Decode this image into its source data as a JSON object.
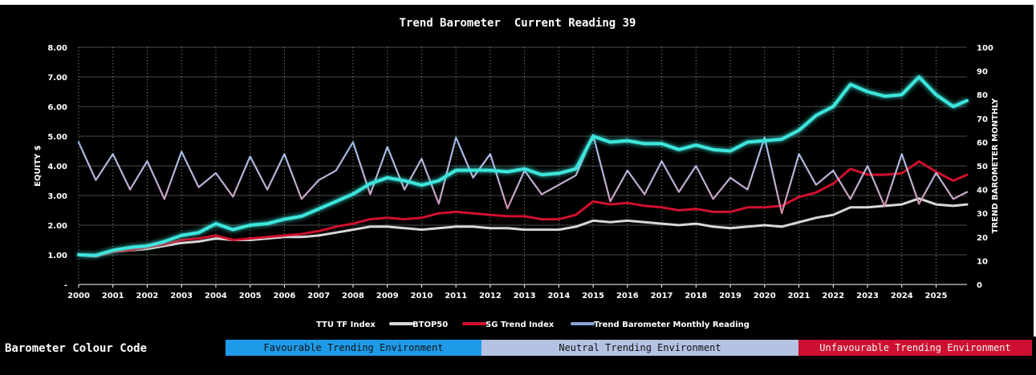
{
  "header": {
    "title": "Trend Barometer  Current Reading 39"
  },
  "chart_data": {
    "type": "line",
    "title": "Trend Barometer  Current Reading 39",
    "ylabel_left": "EQUITY $",
    "ylabel_right": "TREND BAROMETER MONTHLY",
    "xlim": [
      2000,
      2025.9
    ],
    "ylim_left": [
      0,
      8
    ],
    "ylim_right": [
      0,
      100
    ],
    "x_ticks": [
      "2000",
      "2001",
      "2002",
      "2003",
      "2004",
      "2005",
      "2006",
      "2007",
      "2008",
      "2009",
      "2010",
      "2011",
      "2012",
      "2013",
      "2014",
      "2015",
      "2016",
      "2017",
      "2018",
      "2019",
      "2020",
      "2021",
      "2022",
      "2023",
      "2024",
      "2025"
    ],
    "y_left_ticks": [
      "-",
      "1.00",
      "2.00",
      "3.00",
      "4.00",
      "5.00",
      "6.00",
      "7.00",
      "8.00"
    ],
    "y_right_ticks": [
      "0",
      "10",
      "20",
      "30",
      "40",
      "50",
      "60",
      "70",
      "80",
      "90",
      "100"
    ],
    "grid": true,
    "legend_position": "bottom",
    "x": [
      2000,
      2000.5,
      2001,
      2001.5,
      2002,
      2002.5,
      2003,
      2003.5,
      2004,
      2004.5,
      2005,
      2005.5,
      2006,
      2006.5,
      2007,
      2007.5,
      2008,
      2008.5,
      2009,
      2009.5,
      2010,
      2010.5,
      2011,
      2011.5,
      2012,
      2012.5,
      2013,
      2013.5,
      2014,
      2014.5,
      2015,
      2015.5,
      2016,
      2016.5,
      2017,
      2017.5,
      2018,
      2018.5,
      2019,
      2019.5,
      2020,
      2020.5,
      2021,
      2021.5,
      2022,
      2022.5,
      2023,
      2023.5,
      2024,
      2024.5,
      2025,
      2025.5,
      2025.9
    ],
    "series": [
      {
        "name": "TTU TF Index",
        "axis": "left",
        "color": "#3ee6dc",
        "values": [
          1.0,
          0.98,
          1.15,
          1.25,
          1.3,
          1.45,
          1.65,
          1.75,
          2.05,
          1.85,
          2.0,
          2.05,
          2.2,
          2.3,
          2.55,
          2.8,
          3.05,
          3.4,
          3.6,
          3.5,
          3.35,
          3.5,
          3.85,
          3.85,
          3.85,
          3.8,
          3.9,
          3.7,
          3.75,
          3.9,
          5.0,
          4.8,
          4.85,
          4.75,
          4.75,
          4.55,
          4.7,
          4.55,
          4.5,
          4.8,
          4.85,
          4.9,
          5.2,
          5.7,
          6.0,
          6.75,
          6.5,
          6.35,
          6.4,
          7.0,
          6.4,
          6.0,
          6.2
        ]
      },
      {
        "name": "BTOP50",
        "axis": "left",
        "color": "#d8d8d8",
        "values": [
          1.0,
          0.95,
          1.1,
          1.15,
          1.2,
          1.3,
          1.4,
          1.45,
          1.55,
          1.5,
          1.5,
          1.55,
          1.6,
          1.6,
          1.65,
          1.75,
          1.85,
          1.95,
          1.95,
          1.9,
          1.85,
          1.9,
          1.95,
          1.95,
          1.9,
          1.9,
          1.85,
          1.85,
          1.85,
          1.95,
          2.15,
          2.1,
          2.15,
          2.1,
          2.05,
          2.0,
          2.05,
          1.95,
          1.9,
          1.95,
          2.0,
          1.95,
          2.1,
          2.25,
          2.35,
          2.6,
          2.6,
          2.65,
          2.7,
          2.9,
          2.7,
          2.65,
          2.7
        ]
      },
      {
        "name": "SG Trend Index",
        "axis": "left",
        "color": "#d0102c",
        "values": [
          1.0,
          0.95,
          1.1,
          1.15,
          1.25,
          1.35,
          1.5,
          1.55,
          1.65,
          1.5,
          1.55,
          1.6,
          1.65,
          1.7,
          1.8,
          1.95,
          2.05,
          2.2,
          2.25,
          2.2,
          2.25,
          2.4,
          2.45,
          2.4,
          2.35,
          2.3,
          2.3,
          2.2,
          2.2,
          2.35,
          2.8,
          2.7,
          2.75,
          2.65,
          2.6,
          2.5,
          2.55,
          2.45,
          2.45,
          2.6,
          2.6,
          2.65,
          2.95,
          3.1,
          3.4,
          3.9,
          3.7,
          3.7,
          3.75,
          4.15,
          3.8,
          3.5,
          3.7
        ]
      },
      {
        "name": "Trend Barometer Monthly Reading",
        "axis": "right",
        "color": "#8aa4d6",
        "values": [
          60,
          44,
          55,
          40,
          52,
          36,
          56,
          41,
          47,
          37,
          54,
          40,
          55,
          36,
          44,
          48,
          60,
          38,
          58,
          40,
          53,
          34,
          62,
          45,
          55,
          32,
          48,
          38,
          42,
          46,
          63,
          35,
          48,
          38,
          52,
          39,
          50,
          36,
          45,
          40,
          62,
          30,
          55,
          42,
          48,
          36,
          50,
          33,
          55,
          34,
          47,
          36,
          39
        ]
      }
    ]
  },
  "legend": {
    "items": [
      {
        "label": "TTU TF Index",
        "color": "#3ee6dc"
      },
      {
        "label": "BTOP50",
        "color": "#d8d8d8"
      },
      {
        "label": "SG Trend Index",
        "color": "#d0102c"
      },
      {
        "label": "Trend Barometer Monthly Reading",
        "color": "#8aa4d6"
      }
    ]
  },
  "colour_code": {
    "title": "Barometer Colour Code",
    "favourable": {
      "label": "Favourable Trending Environment",
      "color": "#1e9be8"
    },
    "neutral": {
      "label": "Neutral Trending Environment",
      "color": "#b5c2e3"
    },
    "unfavourable": {
      "label": "Unfavourable Trending Environment",
      "color": "#cd1032"
    }
  }
}
